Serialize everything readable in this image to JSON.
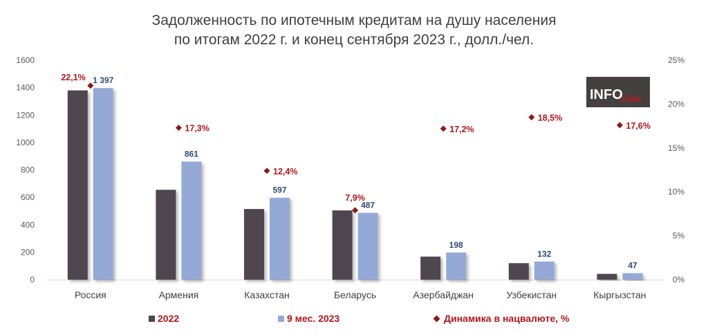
{
  "title": {
    "line1": "Задолженность по ипотечным кредитам на душу населения",
    "line2": "по итогам 2022 г. и конец сентября 2023 г., долл./чел."
  },
  "logo": {
    "text_info": "INFO",
    "text_line": "Line"
  },
  "colors": {
    "series_2022": "#4f464f",
    "series_2023": "#94a9d5",
    "dynamics": "#8b1a1a",
    "label_2023": "#2f4a78",
    "label_dynamics": "#b3161b",
    "axis_text": "#595959"
  },
  "chart_data": {
    "type": "bar",
    "categories": [
      "Россия",
      "Армения",
      "Казахстан",
      "Беларусь",
      "Азербайджан",
      "Узбекистан",
      "Кыргызстан"
    ],
    "series": [
      {
        "name": "2022",
        "values": [
          1380,
          655,
          515,
          505,
          168,
          120,
          42
        ]
      },
      {
        "name": "9 мес. 2023",
        "values": [
          1397,
          861,
          597,
          487,
          198,
          132,
          47
        ],
        "labels": [
          "1 397",
          "861",
          "597",
          "487",
          "198",
          "132",
          "47"
        ]
      },
      {
        "name": "Динамика в нацвалюте, %",
        "type": "scatter",
        "axis": "right",
        "values": [
          22.1,
          17.3,
          12.4,
          7.9,
          17.2,
          18.5,
          17.6
        ],
        "labels": [
          "22,1%",
          "17,3%",
          "12,4%",
          "7,9%",
          "17,2%",
          "18,5%",
          "17,6%"
        ]
      }
    ],
    "y_left": {
      "ylim": [
        0,
        1600
      ],
      "ticks": [
        "0",
        "200",
        "400",
        "600",
        "800",
        "1000",
        "1200",
        "1400",
        "1600"
      ]
    },
    "y_right": {
      "ylim": [
        0,
        25
      ],
      "ticks": [
        "0%",
        "5%",
        "10%",
        "15%",
        "20%",
        "25%"
      ]
    },
    "grid": false,
    "legend_position": "bottom"
  }
}
